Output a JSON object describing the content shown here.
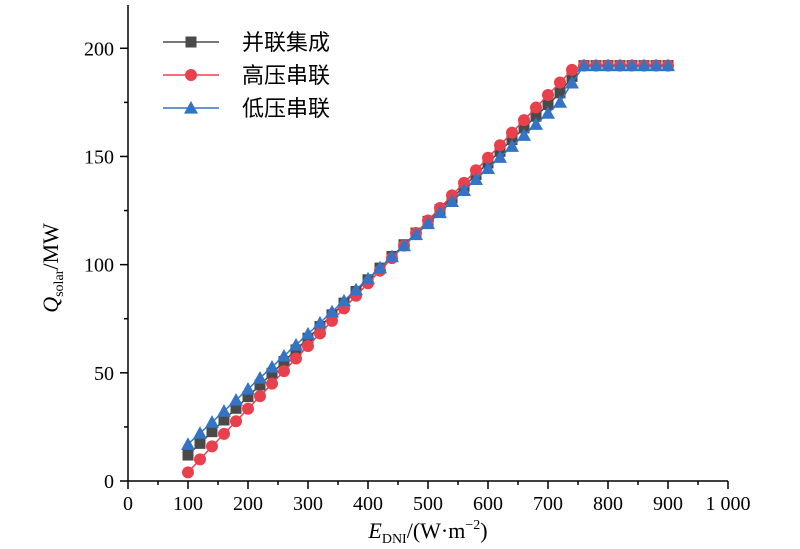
{
  "chart_data": {
    "type": "line",
    "xlabel": {
      "main": "E",
      "sub": "DNI",
      "unit": "/(W·m",
      "sup": "−2",
      "close": ")"
    },
    "ylabel": {
      "main": "Q",
      "sub": "solar",
      "unit": "/MW"
    },
    "xlim": [
      0,
      1000
    ],
    "ylim": [
      0,
      220
    ],
    "xticks": [
      0,
      100,
      200,
      300,
      400,
      500,
      600,
      700,
      800,
      900,
      1000
    ],
    "xtick_labels": [
      "0",
      "100",
      "200",
      "300",
      "400",
      "500",
      "600",
      "700",
      "800",
      "900",
      "1 000"
    ],
    "yticks": [
      0,
      50,
      100,
      150,
      200
    ],
    "ytick_labels": [
      "0",
      "50",
      "100",
      "150",
      "200"
    ],
    "grid": false,
    "legend_position": "top-left",
    "series": [
      {
        "name": "并联集成",
        "color": "#4a4a4a",
        "marker": "square",
        "x": [
          100,
          120,
          140,
          160,
          180,
          200,
          220,
          240,
          260,
          280,
          300,
          320,
          340,
          360,
          380,
          400,
          420,
          440,
          460,
          480,
          500,
          520,
          540,
          560,
          580,
          600,
          620,
          640,
          660,
          680,
          700,
          720,
          740,
          760,
          780,
          800,
          820,
          840,
          860,
          880,
          900
        ],
        "y": [
          12,
          17.4,
          22.8,
          28.2,
          33.6,
          39,
          44.4,
          49.8,
          55.2,
          60.6,
          66,
          71.4,
          76.8,
          82.2,
          87.6,
          93,
          98.4,
          103.8,
          109.2,
          114.6,
          120,
          125.4,
          130.8,
          136.2,
          141.6,
          147,
          152.4,
          157.8,
          163.2,
          168.6,
          174,
          179.4,
          187,
          192,
          192,
          192,
          192,
          192,
          192,
          192,
          192
        ]
      },
      {
        "name": "高压串联",
        "color": "#e8414d",
        "marker": "circle",
        "x": [
          100,
          120,
          140,
          160,
          180,
          200,
          220,
          240,
          260,
          280,
          300,
          320,
          340,
          360,
          380,
          400,
          420,
          440,
          460,
          480,
          500,
          520,
          540,
          560,
          580,
          600,
          620,
          640,
          660,
          680,
          700,
          720,
          740,
          760,
          780,
          800,
          820,
          840,
          860,
          880,
          900
        ],
        "y": [
          4,
          10,
          16,
          21.8,
          27.6,
          33.4,
          39.2,
          45,
          50.8,
          56.6,
          62.4,
          68.2,
          74,
          79.8,
          85.6,
          91.4,
          97.2,
          103,
          108.8,
          114.6,
          120.4,
          126.2,
          132,
          137.8,
          143.6,
          149.4,
          155.2,
          161,
          166.8,
          172.6,
          178.4,
          184.2,
          190,
          192,
          192,
          192,
          192,
          192,
          192,
          192,
          192
        ]
      },
      {
        "name": "低压串联",
        "color": "#3574c4",
        "marker": "triangle",
        "x": [
          100,
          120,
          140,
          160,
          180,
          200,
          220,
          240,
          260,
          280,
          300,
          320,
          340,
          360,
          380,
          400,
          420,
          440,
          460,
          480,
          500,
          520,
          540,
          560,
          580,
          600,
          620,
          640,
          660,
          680,
          700,
          720,
          740,
          760,
          780,
          800,
          820,
          840,
          860,
          880,
          900
        ],
        "y": [
          17,
          22.1,
          27.2,
          32.3,
          37.4,
          42.5,
          47.6,
          52.7,
          57.8,
          62.9,
          68,
          73.1,
          78.2,
          83.3,
          88.4,
          93.5,
          98.6,
          103.7,
          108.8,
          113.9,
          119,
          124.1,
          129.2,
          134.3,
          139.4,
          144.5,
          149.6,
          154.7,
          159.8,
          164.9,
          170,
          175.1,
          184,
          192,
          192,
          192,
          192,
          192,
          192,
          192,
          192
        ]
      }
    ]
  }
}
